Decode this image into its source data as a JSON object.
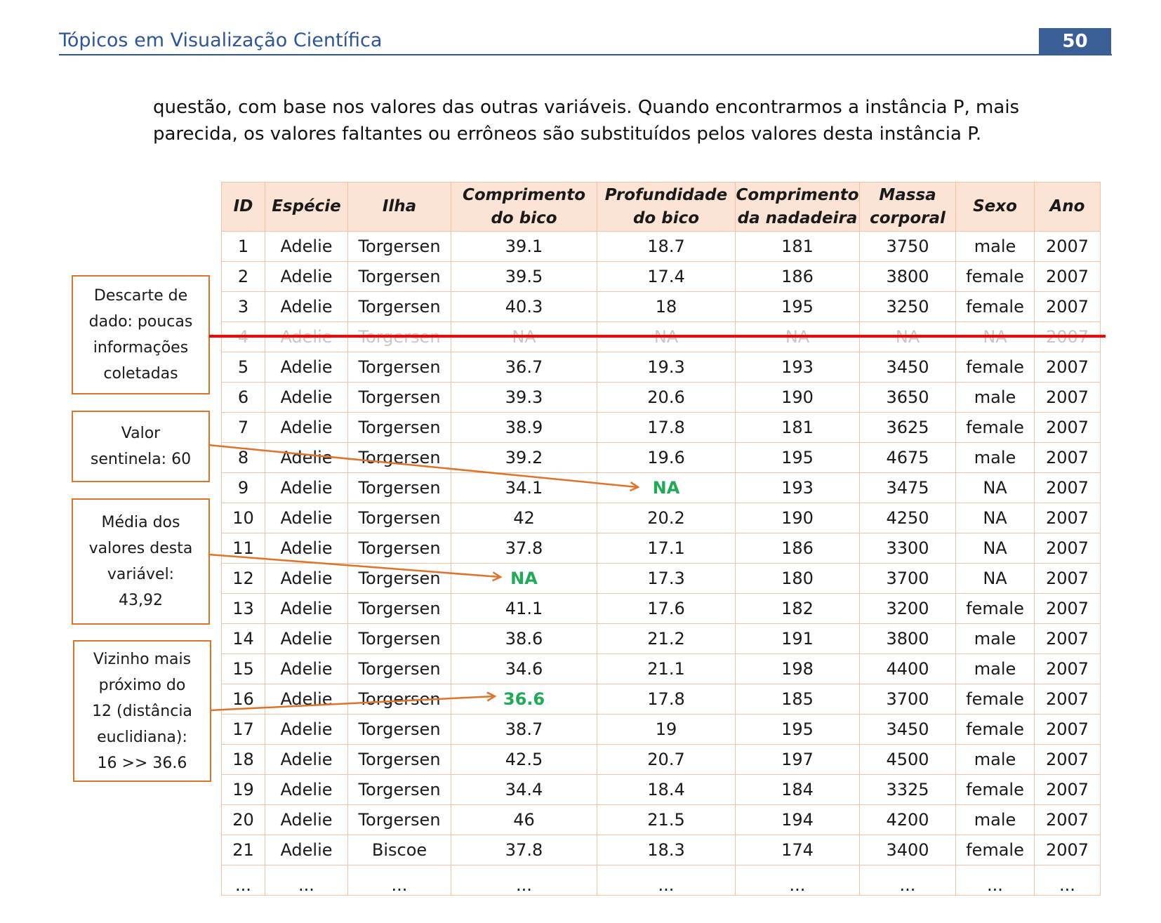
{
  "header": {
    "title": "Tópicos em Visualização Científica",
    "page_number": "50"
  },
  "paragraph": "questão, com base nos valores das outras variáveis. Quando encontrarmos a instância P, mais parecida, os valores faltantes ou errôneos são substituídos pelos valores desta instância P.",
  "table": {
    "headers": [
      "ID",
      "Espécie",
      "Ilha",
      "Comprimento do bico",
      "Profundidade do bico",
      "Comprimento da nadadeira",
      "Massa corporal",
      "Sexo",
      "Ano"
    ],
    "rows": [
      [
        "1",
        "Adelie",
        "Torgersen",
        "39.1",
        "18.7",
        "181",
        "3750",
        "male",
        "2007"
      ],
      [
        "2",
        "Adelie",
        "Torgersen",
        "39.5",
        "17.4",
        "186",
        "3800",
        "female",
        "2007"
      ],
      [
        "3",
        "Adelie",
        "Torgersen",
        "40.3",
        "18",
        "195",
        "3250",
        "female",
        "2007"
      ],
      [
        "4",
        "Adelie",
        "Torgersen",
        "NA",
        "NA",
        "NA",
        "NA",
        "NA",
        "2007"
      ],
      [
        "5",
        "Adelie",
        "Torgersen",
        "36.7",
        "19.3",
        "193",
        "3450",
        "female",
        "2007"
      ],
      [
        "6",
        "Adelie",
        "Torgersen",
        "39.3",
        "20.6",
        "190",
        "3650",
        "male",
        "2007"
      ],
      [
        "7",
        "Adelie",
        "Torgersen",
        "38.9",
        "17.8",
        "181",
        "3625",
        "female",
        "2007"
      ],
      [
        "8",
        "Adelie",
        "Torgersen",
        "39.2",
        "19.6",
        "195",
        "4675",
        "male",
        "2007"
      ],
      [
        "9",
        "Adelie",
        "Torgersen",
        "34.1",
        "NA",
        "193",
        "3475",
        "NA",
        "2007"
      ],
      [
        "10",
        "Adelie",
        "Torgersen",
        "42",
        "20.2",
        "190",
        "4250",
        "NA",
        "2007"
      ],
      [
        "11",
        "Adelie",
        "Torgersen",
        "37.8",
        "17.1",
        "186",
        "3300",
        "NA",
        "2007"
      ],
      [
        "12",
        "Adelie",
        "Torgersen",
        "NA",
        "17.3",
        "180",
        "3700",
        "NA",
        "2007"
      ],
      [
        "13",
        "Adelie",
        "Torgersen",
        "41.1",
        "17.6",
        "182",
        "3200",
        "female",
        "2007"
      ],
      [
        "14",
        "Adelie",
        "Torgersen",
        "38.6",
        "21.2",
        "191",
        "3800",
        "male",
        "2007"
      ],
      [
        "15",
        "Adelie",
        "Torgersen",
        "34.6",
        "21.1",
        "198",
        "4400",
        "male",
        "2007"
      ],
      [
        "16",
        "Adelie",
        "Torgersen",
        "36.6",
        "17.8",
        "185",
        "3700",
        "female",
        "2007"
      ],
      [
        "17",
        "Adelie",
        "Torgersen",
        "38.7",
        "19",
        "195",
        "3450",
        "female",
        "2007"
      ],
      [
        "18",
        "Adelie",
        "Torgersen",
        "42.5",
        "20.7",
        "197",
        "4500",
        "male",
        "2007"
      ],
      [
        "19",
        "Adelie",
        "Torgersen",
        "34.4",
        "18.4",
        "184",
        "3325",
        "female",
        "2007"
      ],
      [
        "20",
        "Adelie",
        "Torgersen",
        "46",
        "21.5",
        "194",
        "4200",
        "male",
        "2007"
      ],
      [
        "21",
        "Adelie",
        "Biscoe",
        "37.8",
        "18.3",
        "174",
        "3400",
        "female",
        "2007"
      ],
      [
        "...",
        "...",
        "...",
        "...",
        "...",
        "...",
        "...",
        "...",
        "..."
      ]
    ],
    "discarded_row_index": 3,
    "highlighted_cells": [
      [
        8,
        4
      ],
      [
        11,
        3
      ],
      [
        15,
        3
      ]
    ]
  },
  "callouts": {
    "discard": "Descarte de\ndado: poucas\ninformações\ncoletadas",
    "sentinel": "Valor\nsentinela: 60",
    "mean": "Média dos\nvalores desta\nvariável:\n43,92",
    "neighbor": "Vizinho mais\npróximo do\n12 (distância\neuclidiana):\n16 >> 36.6"
  },
  "colors": {
    "header_blue": "#2e5597",
    "strike_red": "#ff0000",
    "arrow_orange": "#e0732a",
    "highlight_green": "#1faa55",
    "table_header_bg": "#fbe4d6",
    "table_border": "#f2c3a3"
  }
}
